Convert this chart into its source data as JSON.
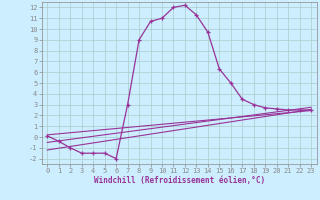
{
  "xlabel": "Windchill (Refroidissement éolien,°C)",
  "bg_color": "#cceeff",
  "line_color": "#993399",
  "grid_color": "#aacccc",
  "xlim": [
    -0.5,
    23.5
  ],
  "ylim": [
    -2.5,
    12.5
  ],
  "xticks": [
    0,
    1,
    2,
    3,
    4,
    5,
    6,
    7,
    8,
    9,
    10,
    11,
    12,
    13,
    14,
    15,
    16,
    17,
    18,
    19,
    20,
    21,
    22,
    23
  ],
  "yticks": [
    -2,
    -1,
    0,
    1,
    2,
    3,
    4,
    5,
    6,
    7,
    8,
    9,
    10,
    11,
    12
  ],
  "curve_x": [
    0,
    1,
    2,
    3,
    4,
    5,
    6,
    7,
    8,
    9,
    10,
    11,
    12,
    13,
    14,
    15,
    16,
    17,
    18,
    19,
    20,
    21,
    22,
    23
  ],
  "curve_y": [
    0.1,
    -0.4,
    -1.0,
    -1.5,
    -1.5,
    -1.5,
    -2.0,
    3.0,
    9.0,
    10.7,
    11.0,
    12.0,
    12.2,
    11.3,
    9.7,
    6.3,
    5.0,
    3.5,
    3.0,
    2.7,
    2.6,
    2.5,
    2.5,
    2.5
  ],
  "line1_x": [
    0,
    23
  ],
  "line1_y": [
    -1.2,
    2.55
  ],
  "line2_x": [
    0,
    23
  ],
  "line2_y": [
    -0.5,
    2.75
  ],
  "line3_x": [
    0,
    23
  ],
  "line3_y": [
    0.2,
    2.45
  ],
  "xlabel_fontsize": 5.5,
  "tick_fontsize": 5.0,
  "tick_label_color": "#993399",
  "spine_color": "#888888"
}
